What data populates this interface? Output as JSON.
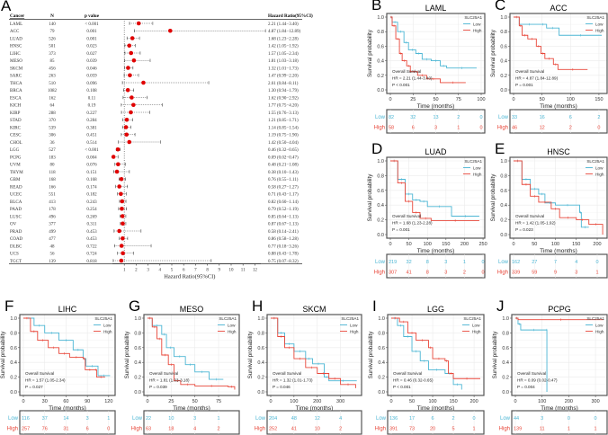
{
  "colors": {
    "low": "#4cb6d4",
    "high": "#e8473a",
    "forest_point": "#e00000",
    "frame": "#555555",
    "grid": "#ebebeb"
  },
  "forest": {
    "letter": "A",
    "headers": {
      "cancer": "Cancer",
      "n": "N",
      "p": "p value",
      "hr": "Hazard Ratio(95%CI)"
    },
    "x_axis_title": "Hazard Ratio(95%CI)",
    "x_ticks": [
      1,
      2,
      3,
      4,
      5,
      6,
      7,
      8,
      9,
      10,
      11,
      12
    ],
    "reference_line": 1,
    "rows": [
      {
        "cancer": "LAML",
        "n": "140",
        "p": "< 0.001",
        "hr": 2.21,
        "lo": 1.44,
        "hi": 3.4,
        "text": "2.21 (1.44−3.40)"
      },
      {
        "cancer": "ACC",
        "n": "79",
        "p": "0.001",
        "hr": 4.87,
        "lo": 1.84,
        "hi": 12.89,
        "text": "4.87 (1.84−12.89)"
      },
      {
        "cancer": "LUAD",
        "n": "526",
        "p": "0.001",
        "hr": 1.68,
        "lo": 1.23,
        "hi": 2.28,
        "text": "1.68 (1.23−2.28)"
      },
      {
        "cancer": "HNSC",
        "n": "501",
        "p": "0.023",
        "hr": 1.42,
        "lo": 1.05,
        "hi": 1.92,
        "text": "1.42 (1.05−1.92)"
      },
      {
        "cancer": "LIHC",
        "n": "373",
        "p": "0.027",
        "hr": 1.57,
        "lo": 1.05,
        "hi": 2.34,
        "text": "1.57 (1.05−2.34)"
      },
      {
        "cancer": "MESO",
        "n": "85",
        "p": "0.039",
        "hr": 1.81,
        "lo": 1.03,
        "hi": 3.18,
        "text": "1.81 (1.03−3.18)"
      },
      {
        "cancer": "SKCM",
        "n": "456",
        "p": "0.046",
        "hr": 1.32,
        "lo": 1.01,
        "hi": 1.73,
        "text": "1.32 (1.01−1.73)"
      },
      {
        "cancer": "SARC",
        "n": "263",
        "p": "0.059",
        "hr": 1.47,
        "lo": 0.99,
        "hi": 2.2,
        "text": "1.47 (0.99−2.20)"
      },
      {
        "cancer": "THCA",
        "n": "510",
        "p": "0.096",
        "hr": 2.61,
        "lo": 0.84,
        "hi": 8.11,
        "text": "2.61 (0.84−8.11)"
      },
      {
        "cancer": "BRCA",
        "n": "1082",
        "p": "0.108",
        "hr": 1.3,
        "lo": 0.94,
        "hi": 1.79,
        "text": "1.30 (0.94−1.79)"
      },
      {
        "cancer": "ESCA",
        "n": "162",
        "p": "0.11",
        "hr": 1.62,
        "lo": 0.9,
        "hi": 2.92,
        "text": "1.62 (0.90−2.92)"
      },
      {
        "cancer": "KICH",
        "n": "64",
        "p": "0.19",
        "hr": 1.77,
        "lo": 0.75,
        "hi": 4.2,
        "text": "1.77 (0.75−4.20)"
      },
      {
        "cancer": "KIRP",
        "n": "288",
        "p": "0.227",
        "hr": 1.55,
        "lo": 0.76,
        "hi": 3.13,
        "text": "1.55 (0.76−3.13)"
      },
      {
        "cancer": "STAD",
        "n": "370",
        "p": "0.284",
        "hr": 1.21,
        "lo": 0.85,
        "hi": 1.71,
        "text": "1.21 (0.85−1.71)"
      },
      {
        "cancer": "KIRC",
        "n": "539",
        "p": "0.381",
        "hr": 1.14,
        "lo": 0.85,
        "hi": 1.54,
        "text": "1.14 (0.85−1.54)"
      },
      {
        "cancer": "CESC",
        "n": "306",
        "p": "0.451",
        "hr": 1.19,
        "lo": 0.75,
        "hi": 1.9,
        "text": "1.19 (0.75−1.90)"
      },
      {
        "cancer": "CHOL",
        "n": "36",
        "p": "0.514",
        "hr": 1.42,
        "lo": 0.5,
        "hi": 4.04,
        "text": "1.42 (0.50−4.04)"
      },
      {
        "cancer": "LGG",
        "n": "527",
        "p": "< 0.001",
        "hr": 0.46,
        "lo": 0.32,
        "hi": 0.65,
        "text": "0.46 (0.32−0.65)"
      },
      {
        "cancer": "PCPG",
        "n": "183",
        "p": "0.004",
        "hr": 0.09,
        "lo": 0.02,
        "hi": 0.47,
        "text": "0.09 (0.02−0.47)"
      },
      {
        "cancer": "UVM",
        "n": "80",
        "p": "0.076",
        "hr": 0.48,
        "lo": 0.21,
        "hi": 1.08,
        "text": "0.48 (0.21−1.08)"
      },
      {
        "cancer": "THYM",
        "n": "118",
        "p": "0.151",
        "hr": 0.38,
        "lo": 0.1,
        "hi": 1.43,
        "text": "0.38 (0.10−1.43)"
      },
      {
        "cancer": "GBM",
        "n": "168",
        "p": "0.168",
        "hr": 0.76,
        "lo": 0.55,
        "hi": 1.11,
        "text": "0.76 (0.55−1.11)"
      },
      {
        "cancer": "READ",
        "n": "166",
        "p": "0.174",
        "hr": 0.58,
        "lo": 0.27,
        "hi": 1.27,
        "text": "0.58 (0.27−1.27)"
      },
      {
        "cancer": "UCEC",
        "n": "551",
        "p": "0.182",
        "hr": 0.71,
        "lo": 0.43,
        "hi": 1.17,
        "text": "0.71 (0.43−1.17)"
      },
      {
        "cancer": "BLCA",
        "n": "413",
        "p": "0.243",
        "hr": 0.82,
        "lo": 0.6,
        "hi": 1.14,
        "text": "0.82 (0.60−1.14)"
      },
      {
        "cancer": "PAAD",
        "n": "178",
        "p": "0.254",
        "hr": 0.79,
        "lo": 0.52,
        "hi": 1.19,
        "text": "0.79 (0.52−1.19)"
      },
      {
        "cancer": "LUSC",
        "n": "496",
        "p": "0.269",
        "hr": 0.85,
        "lo": 0.64,
        "hi": 1.13,
        "text": "0.85 (0.64−1.13)"
      },
      {
        "cancer": "OV",
        "n": "377",
        "p": "0.311",
        "hr": 0.87,
        "lo": 0.67,
        "hi": 1.13,
        "text": "0.87 (0.67−1.13)"
      },
      {
        "cancer": "PRAD",
        "n": "499",
        "p": "0.453",
        "hr": 0.58,
        "lo": 0.14,
        "hi": 2.41,
        "text": "0.58 (0.14−2.41)"
      },
      {
        "cancer": "COAD",
        "n": "477",
        "p": "0.453",
        "hr": 0.86,
        "lo": 0.58,
        "hi": 1.28,
        "text": "0.86 (0.58−1.28)"
      },
      {
        "cancer": "DLBC",
        "n": "48",
        "p": "0.722",
        "hr": 0.77,
        "lo": 0.18,
        "hi": 3.26,
        "text": "0.77 (0.18−3.26)"
      },
      {
        "cancer": "UCS",
        "n": "56",
        "p": "0.724",
        "hr": 0.88,
        "lo": 0.43,
        "hi": 1.78,
        "text": "0.88 (0.43−1.78)"
      },
      {
        "cancer": "TGCT",
        "n": "139",
        "p": "0.818",
        "hr": 0.75,
        "lo": 0.07,
        "hi": 8.32,
        "text": "0.75 (0.07−8.32)"
      }
    ]
  },
  "km_common": {
    "y_label": "Survival probability",
    "x_label": "Time (months)",
    "y_ticks": [
      "0.0",
      "0.2",
      "0.4",
      "0.6",
      "0.8",
      "1.0"
    ],
    "legend_title": "SLC25A1",
    "low_label": "Low",
    "high_label": "High",
    "annotation_title": "Overall Survival",
    "type": "line"
  },
  "chart_data": [
    {
      "letter": "B",
      "title": "LAML",
      "xlim": [
        0,
        100
      ],
      "x_ticks": [
        0,
        25,
        50,
        75,
        100
      ],
      "hr_text": "HR = 2.21 (1.44-3.40)",
      "p_text": "P < 0.001",
      "low": [
        [
          0,
          1
        ],
        [
          2,
          0.93
        ],
        [
          8,
          0.8
        ],
        [
          15,
          0.65
        ],
        [
          20,
          0.55
        ],
        [
          28,
          0.5
        ],
        [
          35,
          0.42
        ],
        [
          45,
          0.4
        ],
        [
          55,
          0.33
        ],
        [
          62,
          0.3
        ],
        [
          95,
          0.3
        ]
      ],
      "high": [
        [
          0,
          1
        ],
        [
          2,
          0.88
        ],
        [
          6,
          0.7
        ],
        [
          10,
          0.5
        ],
        [
          13,
          0.4
        ],
        [
          18,
          0.33
        ],
        [
          22,
          0.25
        ],
        [
          30,
          0.2
        ],
        [
          40,
          0.15
        ],
        [
          55,
          0.1
        ],
        [
          83,
          0.1
        ]
      ],
      "risk_low": [
        "82",
        "32",
        "13",
        "2",
        "0"
      ],
      "risk_high": [
        "58",
        "6",
        "3",
        "1",
        "0"
      ]
    },
    {
      "letter": "C",
      "title": "ACC",
      "xlim": [
        0,
        158
      ],
      "x_ticks": [
        0,
        50,
        100,
        150
      ],
      "hr_text": "HR = 4.87 (1.84-12.89)",
      "p_text": "P = 0.001",
      "low": [
        [
          0,
          1
        ],
        [
          10,
          0.9
        ],
        [
          45,
          0.9
        ],
        [
          58,
          0.85
        ],
        [
          80,
          0.75
        ],
        [
          155,
          0.75
        ]
      ],
      "high": [
        [
          0,
          1
        ],
        [
          10,
          0.88
        ],
        [
          15,
          0.75
        ],
        [
          25,
          0.7
        ],
        [
          40,
          0.6
        ],
        [
          48,
          0.5
        ],
        [
          55,
          0.43
        ],
        [
          70,
          0.35
        ],
        [
          78,
          0.28
        ],
        [
          130,
          0.28
        ]
      ],
      "risk_low": [
        "33",
        "16",
        "6",
        "2"
      ],
      "risk_high": [
        "46",
        "12",
        "2",
        "0"
      ]
    },
    {
      "letter": "D",
      "title": "LUAD",
      "xlim": [
        0,
        245
      ],
      "x_ticks": [
        0,
        50,
        100,
        150,
        200,
        250
      ],
      "hr_text": "HR = 1.68 (1.23-2.28)",
      "p_text": "P = 0.001",
      "low": [
        [
          0,
          1
        ],
        [
          20,
          0.75
        ],
        [
          40,
          0.55
        ],
        [
          60,
          0.47
        ],
        [
          80,
          0.45
        ],
        [
          100,
          0.38
        ],
        [
          165,
          0.25
        ],
        [
          240,
          0.25
        ]
      ],
      "high": [
        [
          0,
          1
        ],
        [
          20,
          0.7
        ],
        [
          40,
          0.45
        ],
        [
          60,
          0.3
        ],
        [
          80,
          0.22
        ],
        [
          110,
          0.19
        ],
        [
          240,
          0.19
        ]
      ],
      "risk_low": [
        "219",
        "32",
        "8",
        "3",
        "1",
        "0"
      ],
      "risk_high": [
        "307",
        "41",
        "8",
        "3",
        "2",
        "0"
      ]
    },
    {
      "letter": "E",
      "title": "HNSC",
      "xlim": [
        0,
        215
      ],
      "x_ticks": [
        0,
        50,
        100,
        150,
        200
      ],
      "hr_text": "HR = 1.42 (1.05-1.92)",
      "p_text": "P = 0.023",
      "low": [
        [
          0,
          1
        ],
        [
          20,
          0.75
        ],
        [
          40,
          0.62
        ],
        [
          60,
          0.55
        ],
        [
          75,
          0.43
        ],
        [
          100,
          0.4
        ],
        [
          158,
          0.3
        ],
        [
          162,
          0.1
        ],
        [
          180,
          0.1
        ]
      ],
      "high": [
        [
          0,
          1
        ],
        [
          20,
          0.68
        ],
        [
          40,
          0.52
        ],
        [
          60,
          0.44
        ],
        [
          90,
          0.35
        ],
        [
          110,
          0.23
        ],
        [
          150,
          0.2
        ],
        [
          180,
          0.14
        ],
        [
          213,
          0
        ]
      ],
      "risk_low": [
        "162",
        "27",
        "7",
        "4",
        "0"
      ],
      "risk_high": [
        "339",
        "59",
        "9",
        "3",
        "1"
      ]
    },
    {
      "letter": "F",
      "title": "LIHC",
      "xlim": [
        0,
        124
      ],
      "x_ticks": [
        0,
        30,
        60,
        90,
        120
      ],
      "hr_text": "HR = 1.57 (1.05-2.34)",
      "p_text": "P = 0.027",
      "low": [
        [
          0,
          1
        ],
        [
          15,
          0.9
        ],
        [
          30,
          0.8
        ],
        [
          50,
          0.7
        ],
        [
          70,
          0.57
        ],
        [
          84,
          0.45
        ],
        [
          88,
          0.35
        ],
        [
          105,
          0.22
        ],
        [
          122,
          0.22
        ]
      ],
      "high": [
        [
          0,
          1
        ],
        [
          10,
          0.82
        ],
        [
          20,
          0.7
        ],
        [
          35,
          0.6
        ],
        [
          50,
          0.52
        ],
        [
          65,
          0.47
        ],
        [
          84,
          0.45
        ],
        [
          87,
          0.3
        ],
        [
          100,
          0.3
        ],
        [
          103,
          0.2
        ],
        [
          115,
          0.2
        ]
      ],
      "risk_low": [
        "116",
        "37",
        "14",
        "3",
        "1"
      ],
      "risk_high": [
        "257",
        "76",
        "31",
        "6",
        "0"
      ]
    },
    {
      "letter": "G",
      "title": "MESO",
      "xlim": [
        0,
        93
      ],
      "x_ticks": [
        0,
        25,
        50,
        75
      ],
      "hr_text": "HR = 1.81 (1.03-3.18)",
      "p_text": "P = 0.039",
      "low": [
        [
          0,
          1
        ],
        [
          5,
          0.9
        ],
        [
          15,
          0.78
        ],
        [
          20,
          0.6
        ],
        [
          28,
          0.48
        ],
        [
          40,
          0.37
        ],
        [
          50,
          0.27
        ],
        [
          65,
          0.17
        ],
        [
          80,
          0.17
        ]
      ],
      "high": [
        [
          0,
          1
        ],
        [
          5,
          0.88
        ],
        [
          10,
          0.72
        ],
        [
          15,
          0.5
        ],
        [
          22,
          0.37
        ],
        [
          28,
          0.15
        ],
        [
          35,
          0.1
        ],
        [
          50,
          0.08
        ],
        [
          85,
          0.07
        ],
        [
          92,
          0.03
        ]
      ],
      "risk_low": [
        "22",
        "10",
        "3",
        "1",
        "0"
      ],
      "risk_high": [
        "63",
        "18",
        "4",
        "2",
        "0"
      ]
    },
    {
      "letter": "H",
      "title": "SKCM",
      "xlim": [
        0,
        375
      ],
      "x_ticks": [
        0,
        100,
        200,
        300
      ],
      "hr_text": "HR = 1.32 (1.01-1.73)",
      "p_text": "P = 0.046",
      "low": [
        [
          0,
          1
        ],
        [
          30,
          0.8
        ],
        [
          60,
          0.65
        ],
        [
          100,
          0.55
        ],
        [
          150,
          0.45
        ],
        [
          180,
          0.38
        ],
        [
          230,
          0.2
        ],
        [
          250,
          0.15
        ],
        [
          370,
          0.15
        ]
      ],
      "high": [
        [
          0,
          1
        ],
        [
          30,
          0.75
        ],
        [
          60,
          0.6
        ],
        [
          100,
          0.45
        ],
        [
          150,
          0.33
        ],
        [
          200,
          0.25
        ],
        [
          250,
          0.18
        ],
        [
          300,
          0.1
        ],
        [
          365,
          0.05
        ]
      ],
      "risk_low": [
        "204",
        "48",
        "12",
        "4",
        "0"
      ],
      "risk_high": [
        "252",
        "41",
        "10",
        "2",
        "0"
      ]
    },
    {
      "letter": "I",
      "title": "LGG",
      "xlim": [
        0,
        215
      ],
      "x_ticks": [
        0,
        50,
        100,
        150,
        200
      ],
      "hr_text": "HR = 0.46 (0.32-0.65)",
      "p_text": "P < 0.001",
      "low": [
        [
          0,
          1
        ],
        [
          15,
          0.9
        ],
        [
          30,
          0.75
        ],
        [
          50,
          0.55
        ],
        [
          70,
          0.42
        ],
        [
          90,
          0.3
        ],
        [
          130,
          0.25
        ],
        [
          150,
          0.1
        ],
        [
          170,
          0.03
        ]
      ],
      "high": [
        [
          0,
          1
        ],
        [
          20,
          0.95
        ],
        [
          40,
          0.8
        ],
        [
          60,
          0.7
        ],
        [
          90,
          0.6
        ],
        [
          100,
          0.45
        ],
        [
          130,
          0.42
        ],
        [
          138,
          0.25
        ],
        [
          150,
          0.18
        ],
        [
          215,
          0.18
        ]
      ],
      "risk_low": [
        "136",
        "17",
        "6",
        "2",
        "0"
      ],
      "risk_high": [
        "391",
        "73",
        "20",
        "5",
        "1"
      ]
    },
    {
      "letter": "J",
      "title": "PCPG",
      "xlim": [
        0,
        330
      ],
      "x_ticks": [
        0,
        100,
        200,
        300
      ],
      "hr_text": "HR = 0.09 (0.02-0.47)",
      "p_text": "P = 0.004",
      "low": [
        [
          0,
          1
        ],
        [
          10,
          0.92
        ],
        [
          20,
          0.84
        ],
        [
          117,
          0.84
        ],
        [
          118,
          0
        ]
      ],
      "high": [
        [
          0,
          1
        ],
        [
          10,
          0.98
        ],
        [
          330,
          0.98
        ]
      ],
      "risk_low": [
        "44",
        "3",
        "0",
        "0"
      ],
      "risk_high": [
        "139",
        "11",
        "1",
        "1"
      ]
    }
  ]
}
